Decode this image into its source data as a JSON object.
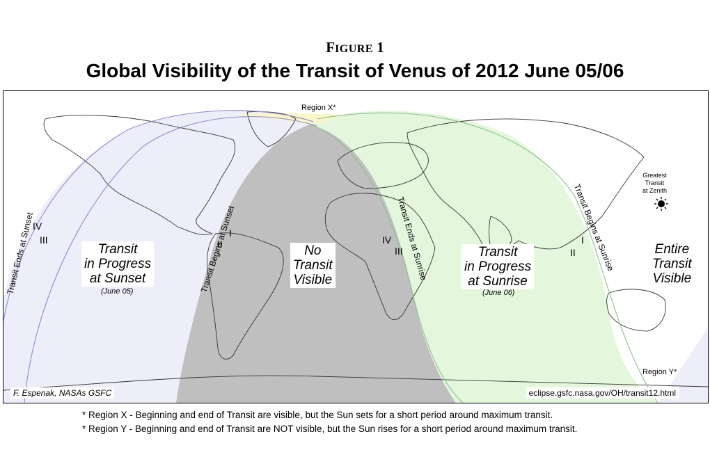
{
  "header": {
    "figure_first": "F",
    "figure_rest": "IGURE",
    "figure_num": "1",
    "title": "Global Visibility of the Transit of Venus of 2012 June 05/06"
  },
  "map": {
    "colors": {
      "sunset_region": "#eeeefa",
      "sunrise_region": "#e4f7dc",
      "no_transit": "#bfbfbf",
      "region_x": "#fbf6c8",
      "curve_sunset": "#8a8ad0",
      "curve_sunrise": "#8ac08a",
      "land_outline": "#333333"
    },
    "sunset": {
      "title_l1": "Transit",
      "title_l2": "in Progress",
      "title_l3": "at Sunset",
      "date": "(June 05)",
      "ends_label": "Transit Ends at Sunset",
      "begins_label": "Transit Begins at Sunset",
      "contact_iv": "IV",
      "contact_iii": "III",
      "contact_i": "I",
      "contact_ii": "II"
    },
    "none": {
      "l1": "No",
      "l2": "Transit",
      "l3": "Visible"
    },
    "sunrise": {
      "title_l1": "Transit",
      "title_l2": "in Progress",
      "title_l3": "at Sunrise",
      "date": "(June 06)",
      "ends_label": "Transit Ends at Sunrise",
      "begins_label": "Transit Begins at Sunrise",
      "contact_iv": "IV",
      "contact_iii": "III",
      "contact_i": "I",
      "contact_ii": "II"
    },
    "entire": {
      "l1": "Entire",
      "l2": "Transit",
      "l3": "Visible"
    },
    "zenith": {
      "l1": "Greatest",
      "l2": "Transit",
      "l3": "at Zenith",
      "icon": "sun-icon"
    },
    "region_x": "Region X*",
    "region_y": "Region Y*",
    "credit": "F. Espenak, NASAs GSFC",
    "url": "eclipse.gsfc.nasa.gov/OH/transit12.html"
  },
  "notes": {
    "x": "* Region X - Beginning and end of Transit are visible, but the Sun sets for a short period around maximum transit.",
    "y": "* Region Y - Beginning and end of Transit are NOT visible, but the Sun rises for a short period around maximum transit."
  }
}
